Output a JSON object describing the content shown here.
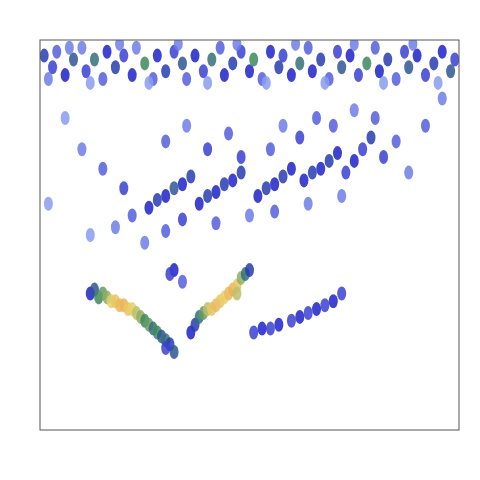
{
  "chart_data": {
    "type": "heatmap",
    "tick_labels": false,
    "grid": false,
    "xlim": [
      0,
      100
    ],
    "ylim": [
      0,
      100
    ],
    "zlim": [
      0,
      100
    ],
    "cells": [
      [
        1,
        4,
        40
      ],
      [
        3,
        7,
        30
      ],
      [
        4,
        3,
        25
      ],
      [
        6,
        9,
        35
      ],
      [
        8,
        5,
        45
      ],
      [
        10,
        2,
        20
      ],
      [
        11,
        8,
        30
      ],
      [
        13,
        5,
        50
      ],
      [
        15,
        10,
        25
      ],
      [
        16,
        3,
        35
      ],
      [
        18,
        7,
        40
      ],
      [
        20,
        4,
        30
      ],
      [
        22,
        9,
        35
      ],
      [
        23,
        2,
        20
      ],
      [
        25,
        6,
        55
      ],
      [
        27,
        10,
        25
      ],
      [
        28,
        4,
        35
      ],
      [
        30,
        8,
        40
      ],
      [
        32,
        3,
        30
      ],
      [
        34,
        6,
        45
      ],
      [
        35,
        10,
        25
      ],
      [
        37,
        4,
        35
      ],
      [
        39,
        8,
        30
      ],
      [
        41,
        5,
        50
      ],
      [
        43,
        2,
        25
      ],
      [
        44,
        9,
        35
      ],
      [
        46,
        6,
        40
      ],
      [
        48,
        3,
        30
      ],
      [
        50,
        8,
        35
      ],
      [
        51,
        5,
        55
      ],
      [
        53,
        10,
        25
      ],
      [
        55,
        3,
        35
      ],
      [
        57,
        7,
        40
      ],
      [
        58,
        4,
        30
      ],
      [
        60,
        9,
        35
      ],
      [
        62,
        6,
        50
      ],
      [
        64,
        2,
        25
      ],
      [
        65,
        8,
        35
      ],
      [
        67,
        5,
        40
      ],
      [
        69,
        10,
        25
      ],
      [
        71,
        3,
        30
      ],
      [
        72,
        7,
        45
      ],
      [
        74,
        4,
        35
      ],
      [
        76,
        9,
        30
      ],
      [
        78,
        6,
        55
      ],
      [
        80,
        2,
        25
      ],
      [
        81,
        8,
        35
      ],
      [
        83,
        5,
        40
      ],
      [
        85,
        10,
        25
      ],
      [
        87,
        3,
        30
      ],
      [
        88,
        7,
        45
      ],
      [
        90,
        4,
        35
      ],
      [
        92,
        9,
        30
      ],
      [
        94,
        6,
        40
      ],
      [
        96,
        3,
        35
      ],
      [
        98,
        8,
        45
      ],
      [
        99,
        5,
        30
      ],
      [
        2,
        10,
        20
      ],
      [
        7,
        2,
        20
      ],
      [
        12,
        11,
        15
      ],
      [
        19,
        1,
        20
      ],
      [
        26,
        11,
        15
      ],
      [
        33,
        1,
        20
      ],
      [
        40,
        11,
        15
      ],
      [
        47,
        1,
        20
      ],
      [
        54,
        11,
        15
      ],
      [
        61,
        1,
        20
      ],
      [
        68,
        11,
        15
      ],
      [
        75,
        1,
        20
      ],
      [
        82,
        11,
        15
      ],
      [
        89,
        1,
        20
      ],
      [
        95,
        11,
        15
      ],
      [
        26,
        43,
        35
      ],
      [
        28,
        41,
        40
      ],
      [
        30,
        40,
        35
      ],
      [
        32,
        38,
        45
      ],
      [
        34,
        37,
        35
      ],
      [
        36,
        35,
        40
      ],
      [
        38,
        42,
        35
      ],
      [
        40,
        40,
        40
      ],
      [
        42,
        39,
        35
      ],
      [
        44,
        37,
        40
      ],
      [
        46,
        36,
        35
      ],
      [
        48,
        34,
        40
      ],
      [
        52,
        40,
        35
      ],
      [
        54,
        38,
        40
      ],
      [
        56,
        37,
        35
      ],
      [
        58,
        35,
        40
      ],
      [
        60,
        33,
        35
      ],
      [
        63,
        36,
        35
      ],
      [
        65,
        34,
        40
      ],
      [
        67,
        33,
        35
      ],
      [
        69,
        31,
        40
      ],
      [
        71,
        29,
        35
      ],
      [
        73,
        34,
        30
      ],
      [
        75,
        31,
        35
      ],
      [
        77,
        28,
        30
      ],
      [
        79,
        25,
        40
      ],
      [
        10,
        28,
        20
      ],
      [
        15,
        33,
        25
      ],
      [
        20,
        38,
        30
      ],
      [
        22,
        45,
        25
      ],
      [
        18,
        48,
        20
      ],
      [
        30,
        26,
        25
      ],
      [
        35,
        22,
        20
      ],
      [
        40,
        28,
        30
      ],
      [
        45,
        24,
        25
      ],
      [
        48,
        30,
        30
      ],
      [
        55,
        28,
        25
      ],
      [
        58,
        22,
        20
      ],
      [
        62,
        25,
        30
      ],
      [
        66,
        20,
        25
      ],
      [
        70,
        22,
        25
      ],
      [
        75,
        18,
        20
      ],
      [
        80,
        20,
        25
      ],
      [
        82,
        30,
        30
      ],
      [
        85,
        26,
        25
      ],
      [
        88,
        34,
        20
      ],
      [
        92,
        22,
        25
      ],
      [
        96,
        15,
        20
      ],
      [
        25,
        52,
        20
      ],
      [
        30,
        49,
        25
      ],
      [
        34,
        46,
        30
      ],
      [
        42,
        47,
        25
      ],
      [
        50,
        45,
        20
      ],
      [
        56,
        44,
        25
      ],
      [
        64,
        42,
        20
      ],
      [
        72,
        40,
        20
      ],
      [
        2,
        42,
        15
      ],
      [
        6,
        20,
        15
      ],
      [
        12,
        50,
        15
      ],
      [
        32,
        59,
        35
      ],
      [
        31,
        60,
        30
      ],
      [
        34,
        62,
        25
      ],
      [
        12,
        65,
        35
      ],
      [
        13,
        64,
        45
      ],
      [
        14,
        66,
        55
      ],
      [
        15,
        65,
        60
      ],
      [
        16,
        66,
        65
      ],
      [
        17,
        67,
        75
      ],
      [
        18,
        67,
        80
      ],
      [
        19,
        68,
        85
      ],
      [
        20,
        68,
        88
      ],
      [
        21,
        69,
        80
      ],
      [
        22,
        69,
        75
      ],
      [
        23,
        70,
        70
      ],
      [
        24,
        71,
        65
      ],
      [
        25,
        72,
        55
      ],
      [
        26,
        73,
        60
      ],
      [
        27,
        74,
        50
      ],
      [
        28,
        75,
        55
      ],
      [
        29,
        76,
        45
      ],
      [
        30,
        77,
        50
      ],
      [
        31,
        78,
        40
      ],
      [
        32,
        80,
        45
      ],
      [
        30,
        79,
        30
      ],
      [
        36,
        75,
        35
      ],
      [
        37,
        73,
        40
      ],
      [
        38,
        71,
        50
      ],
      [
        39,
        70,
        60
      ],
      [
        40,
        69,
        70
      ],
      [
        41,
        69,
        80
      ],
      [
        42,
        68,
        85
      ],
      [
        43,
        67,
        80
      ],
      [
        44,
        66,
        75
      ],
      [
        45,
        65,
        85
      ],
      [
        46,
        64,
        90
      ],
      [
        47,
        63,
        80
      ],
      [
        48,
        61,
        65
      ],
      [
        49,
        60,
        50
      ],
      [
        50,
        59,
        40
      ],
      [
        47,
        65,
        70
      ],
      [
        51,
        75,
        30
      ],
      [
        53,
        74,
        35
      ],
      [
        55,
        74,
        30
      ],
      [
        57,
        73,
        35
      ],
      [
        60,
        72,
        30
      ],
      [
        62,
        71,
        35
      ],
      [
        64,
        70,
        30
      ],
      [
        66,
        69,
        35
      ],
      [
        68,
        68,
        30
      ],
      [
        70,
        67,
        35
      ],
      [
        72,
        65,
        30
      ]
    ]
  }
}
